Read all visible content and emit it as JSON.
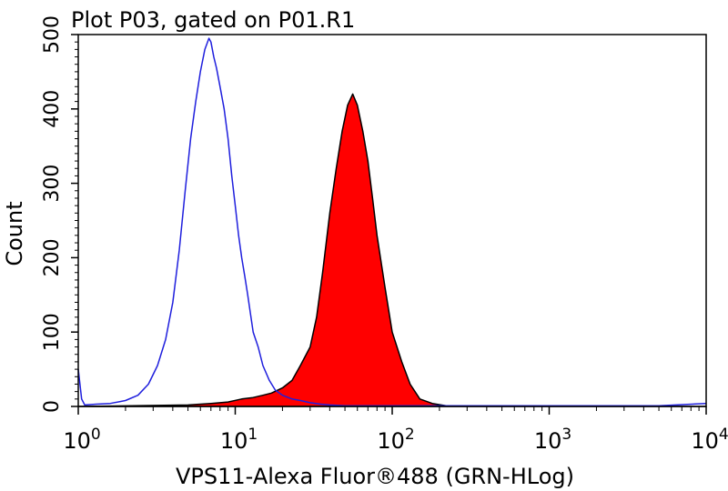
{
  "chart_data": {
    "type": "area",
    "title": "Plot P03, gated on P01.R1",
    "xlabel": "VPS11-Alexa Fluor®488 (GRN-HLog)",
    "ylabel": "Count",
    "x_scale": "log",
    "xlim": [
      1,
      10000
    ],
    "ylim": [
      0,
      500
    ],
    "x_ticks": [
      {
        "base": "10",
        "exp": "0"
      },
      {
        "base": "10",
        "exp": "1"
      },
      {
        "base": "10",
        "exp": "2"
      },
      {
        "base": "10",
        "exp": "3"
      },
      {
        "base": "10",
        "exp": "4"
      }
    ],
    "y_ticks": [
      "0",
      "100",
      "200",
      "300",
      "400",
      "500"
    ],
    "grid": false,
    "series": [
      {
        "style": "outline",
        "color": "#1f1fdd",
        "x": [
          1.0,
          1.05,
          1.1,
          1.3,
          1.6,
          2.0,
          2.4,
          2.8,
          3.2,
          3.6,
          4.0,
          4.4,
          4.8,
          5.2,
          5.6,
          6.0,
          6.4,
          6.8,
          7.0,
          7.3,
          7.6,
          8.0,
          8.5,
          9.0,
          9.5,
          10.0,
          10.5,
          11.0,
          11.5,
          12.0,
          12.5,
          13.0,
          14.0,
          15.0,
          16.5,
          18.0,
          20.0,
          23.0,
          26.0,
          30.0,
          35.0,
          40.0,
          50.0,
          100.0,
          1000.0,
          5000.0,
          10000.0
        ],
        "y": [
          50,
          10,
          2,
          3,
          4,
          8,
          15,
          30,
          55,
          90,
          140,
          210,
          290,
          360,
          410,
          450,
          480,
          495,
          490,
          470,
          455,
          430,
          400,
          360,
          310,
          270,
          230,
          200,
          175,
          150,
          125,
          100,
          80,
          55,
          35,
          22,
          15,
          10,
          8,
          5,
          3,
          2,
          1,
          1,
          1,
          1,
          4
        ]
      },
      {
        "style": "filled",
        "color": "#ff0000",
        "x": [
          1.0,
          5.0,
          7.0,
          9.0,
          11.0,
          13.0,
          15.0,
          17.0,
          20.0,
          23.0,
          26.0,
          30.0,
          33.0,
          36.0,
          40.0,
          44.0,
          48.0,
          52.0,
          56.0,
          60.0,
          65.0,
          70.0,
          75.0,
          80.0,
          90.0,
          100.0,
          115.0,
          130.0,
          150.0,
          180.0,
          220.0,
          10000.0
        ],
        "y": [
          0,
          2,
          4,
          6,
          10,
          12,
          15,
          18,
          25,
          35,
          55,
          80,
          120,
          180,
          260,
          320,
          370,
          405,
          420,
          405,
          370,
          330,
          280,
          230,
          160,
          100,
          60,
          30,
          10,
          4,
          1,
          0
        ]
      }
    ]
  }
}
